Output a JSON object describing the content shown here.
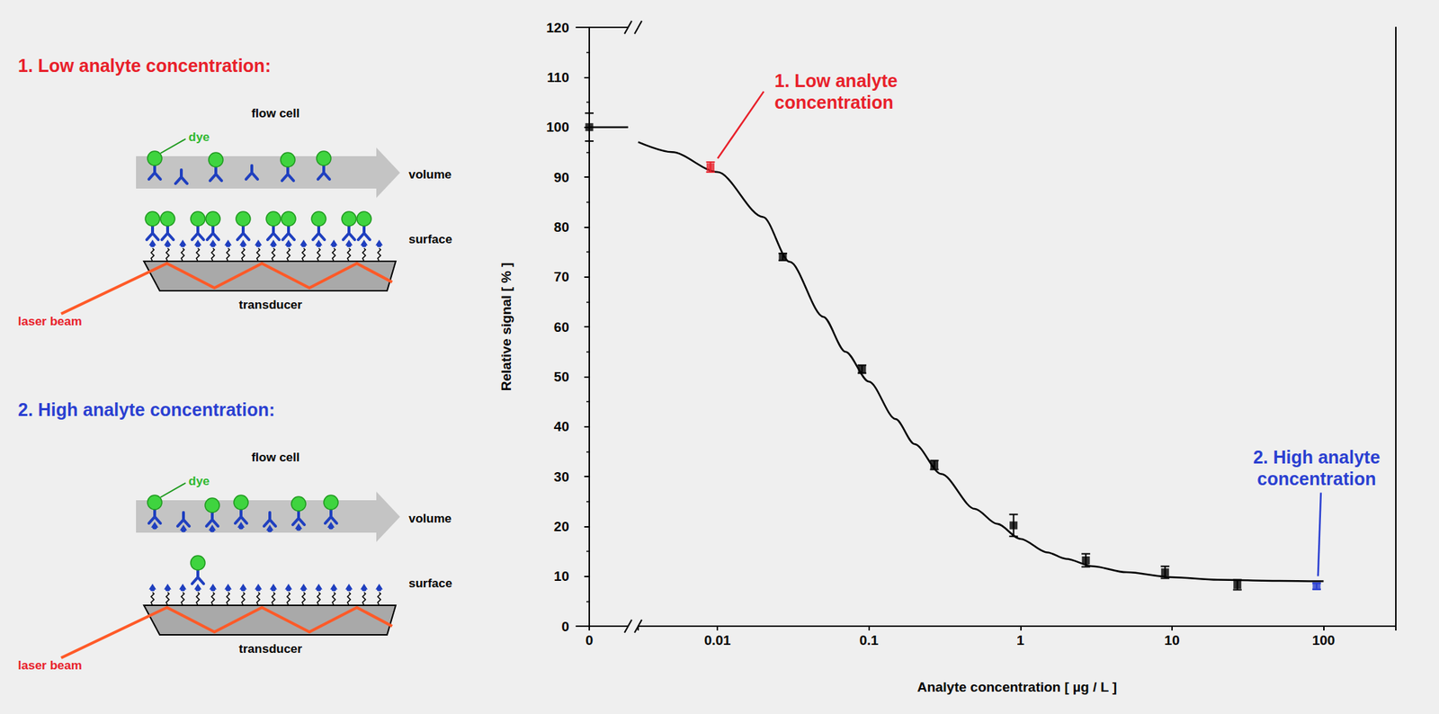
{
  "diagram": {
    "panels": [
      {
        "title": "1. Low analyte concentration:",
        "color": "#e8202a",
        "labels": {
          "flow_cell": "flow cell",
          "dye": "dye",
          "volume": "volume",
          "surface": "surface",
          "transducer": "transducer",
          "laser": "laser beam"
        }
      },
      {
        "title": "2. High analyte concentration:",
        "color": "#2a3fd1",
        "labels": {
          "flow_cell": "flow cell",
          "dye": "dye",
          "volume": "volume",
          "surface": "surface",
          "transducer": "transducer",
          "laser": "laser beam"
        }
      }
    ]
  },
  "chart_data": {
    "type": "scatter",
    "log": "x",
    "x_label": "Analyte concentration [ µg / L ]",
    "y_label": "Relative signal [ % ]",
    "xlim": [
      0.003,
      300
    ],
    "xticks": [
      0.01,
      0.1,
      1,
      10,
      100
    ],
    "x_break": {
      "xlim": [
        -1,
        3
      ],
      "xticks": [
        0
      ]
    },
    "ylim": [
      0,
      120
    ],
    "yticks": [
      0,
      10,
      20,
      30,
      40,
      50,
      60,
      70,
      80,
      90,
      100,
      110,
      120
    ],
    "grid": false,
    "series": [
      {
        "type": "scatter",
        "marker": "square",
        "x": [
          0,
          0.009,
          0.027,
          0.09,
          0.27,
          0.9,
          2.7,
          9,
          27,
          90
        ],
        "values": [
          100,
          92,
          74,
          51.5,
          32.3,
          20.2,
          13.2,
          10.8,
          8.3,
          8
        ],
        "errors": [
          2.8,
          1,
          0.7,
          0.8,
          0.9,
          2.2,
          1.3,
          1.2,
          1,
          0.6
        ],
        "colors": [
          "#000000",
          "#e8202a",
          "#000000",
          "#000000",
          "#000000",
          "#000000",
          "#000000",
          "#000000",
          "#000000",
          "#2a3fd1"
        ]
      },
      {
        "type": "line",
        "line_style": "solid",
        "color": "#000000",
        "x": [
          0,
          0.003,
          0.005,
          0.01,
          0.02,
          0.03,
          0.05,
          0.07,
          0.1,
          0.15,
          0.2,
          0.3,
          0.5,
          0.7,
          1,
          1.5,
          2,
          3,
          5,
          10,
          20,
          50,
          100
        ],
        "values": [
          100,
          97,
          95,
          91,
          82,
          73,
          62,
          55,
          49,
          41.5,
          36.5,
          30.5,
          23.5,
          20.5,
          17.5,
          14.8,
          13.5,
          12,
          10.8,
          9.8,
          9.3,
          9.1,
          9
        ]
      }
    ],
    "annotations": [
      {
        "text": "1. Low analyte\nconcentration",
        "x": 0.009,
        "y": 92,
        "color": "#e8202a"
      },
      {
        "text": "2. High analyte\nconcentration",
        "x": 90,
        "y": 8,
        "color": "#2a3fd1"
      }
    ]
  }
}
